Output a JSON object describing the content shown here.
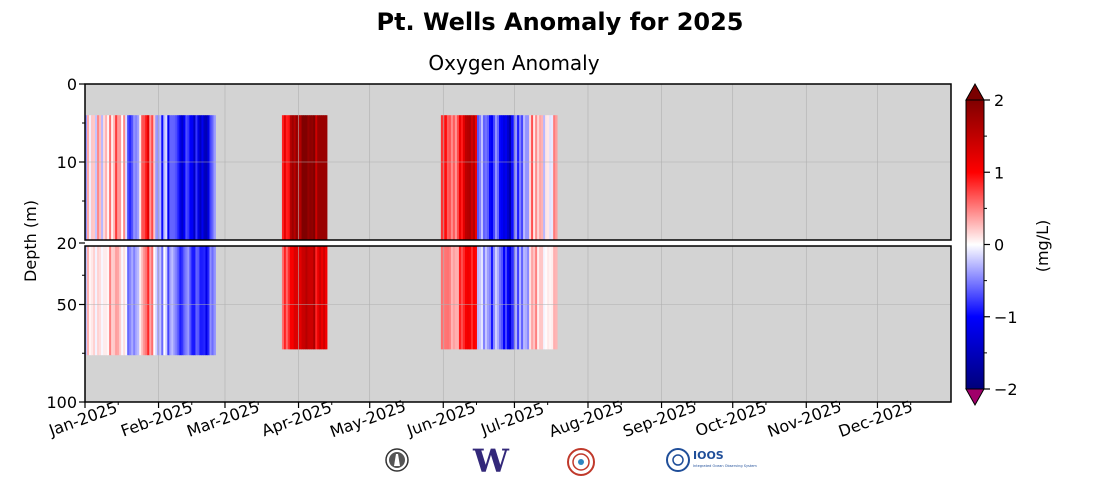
{
  "figure": {
    "title": "Pt. Wells Anomaly for 2025",
    "subtitle": "Oxygen Anomaly"
  },
  "logos": [
    {
      "name": "noaa-lighthouse-logo"
    },
    {
      "name": "uw-logo",
      "text": "W"
    },
    {
      "name": "nanoos-logo"
    },
    {
      "name": "ioos-logo",
      "text": "IOOS",
      "subtext": "Integrated Ocean Observing System"
    }
  ],
  "colors": {
    "panel_bg": "#d3d3d3",
    "positive": "#ff0000",
    "negative": "#0000ff",
    "max_extend": "#7a0000",
    "min_extend": "#a0006a"
  },
  "chart_data": {
    "type": "heatmap",
    "title": "Oxygen Anomaly",
    "xlabel": "",
    "ylabel": "Depth (m)",
    "x_ticks": [
      "Jan-2025",
      "Feb-2025",
      "Mar-2025",
      "Apr-2025",
      "May-2025",
      "Jun-2025",
      "Jul-2025",
      "Aug-2025",
      "Sep-2025",
      "Oct-2025",
      "Nov-2025",
      "Dec-2025"
    ],
    "x_range": [
      "2025-01-01",
      "2025-12-31"
    ],
    "y_ticks": [
      0,
      10,
      20,
      50,
      100
    ],
    "y_upper_range": [
      0,
      20
    ],
    "y_lower_range": [
      20,
      100
    ],
    "grid": true,
    "colorbar": {
      "label": "(mg/L)",
      "ticks": [
        2,
        1,
        0,
        -1,
        -2
      ],
      "range": [
        -2,
        2
      ]
    },
    "data_blocks": [
      {
        "start": "2025-01-01",
        "end": "2025-02-25",
        "depth_top": 4,
        "depth_bottom": 76,
        "mean_anomaly": -0.5
      },
      {
        "start": "2025-03-25",
        "end": "2025-04-13",
        "depth_top": 4,
        "depth_bottom": 73,
        "mean_anomaly": 0.9
      },
      {
        "start": "2025-05-31",
        "end": "2025-07-19",
        "depth_top": 4,
        "depth_bottom": 73,
        "mean_anomaly": 0.3
      }
    ],
    "annotations": [
      {
        "type": "dashed_line",
        "depth": 20
      }
    ]
  }
}
